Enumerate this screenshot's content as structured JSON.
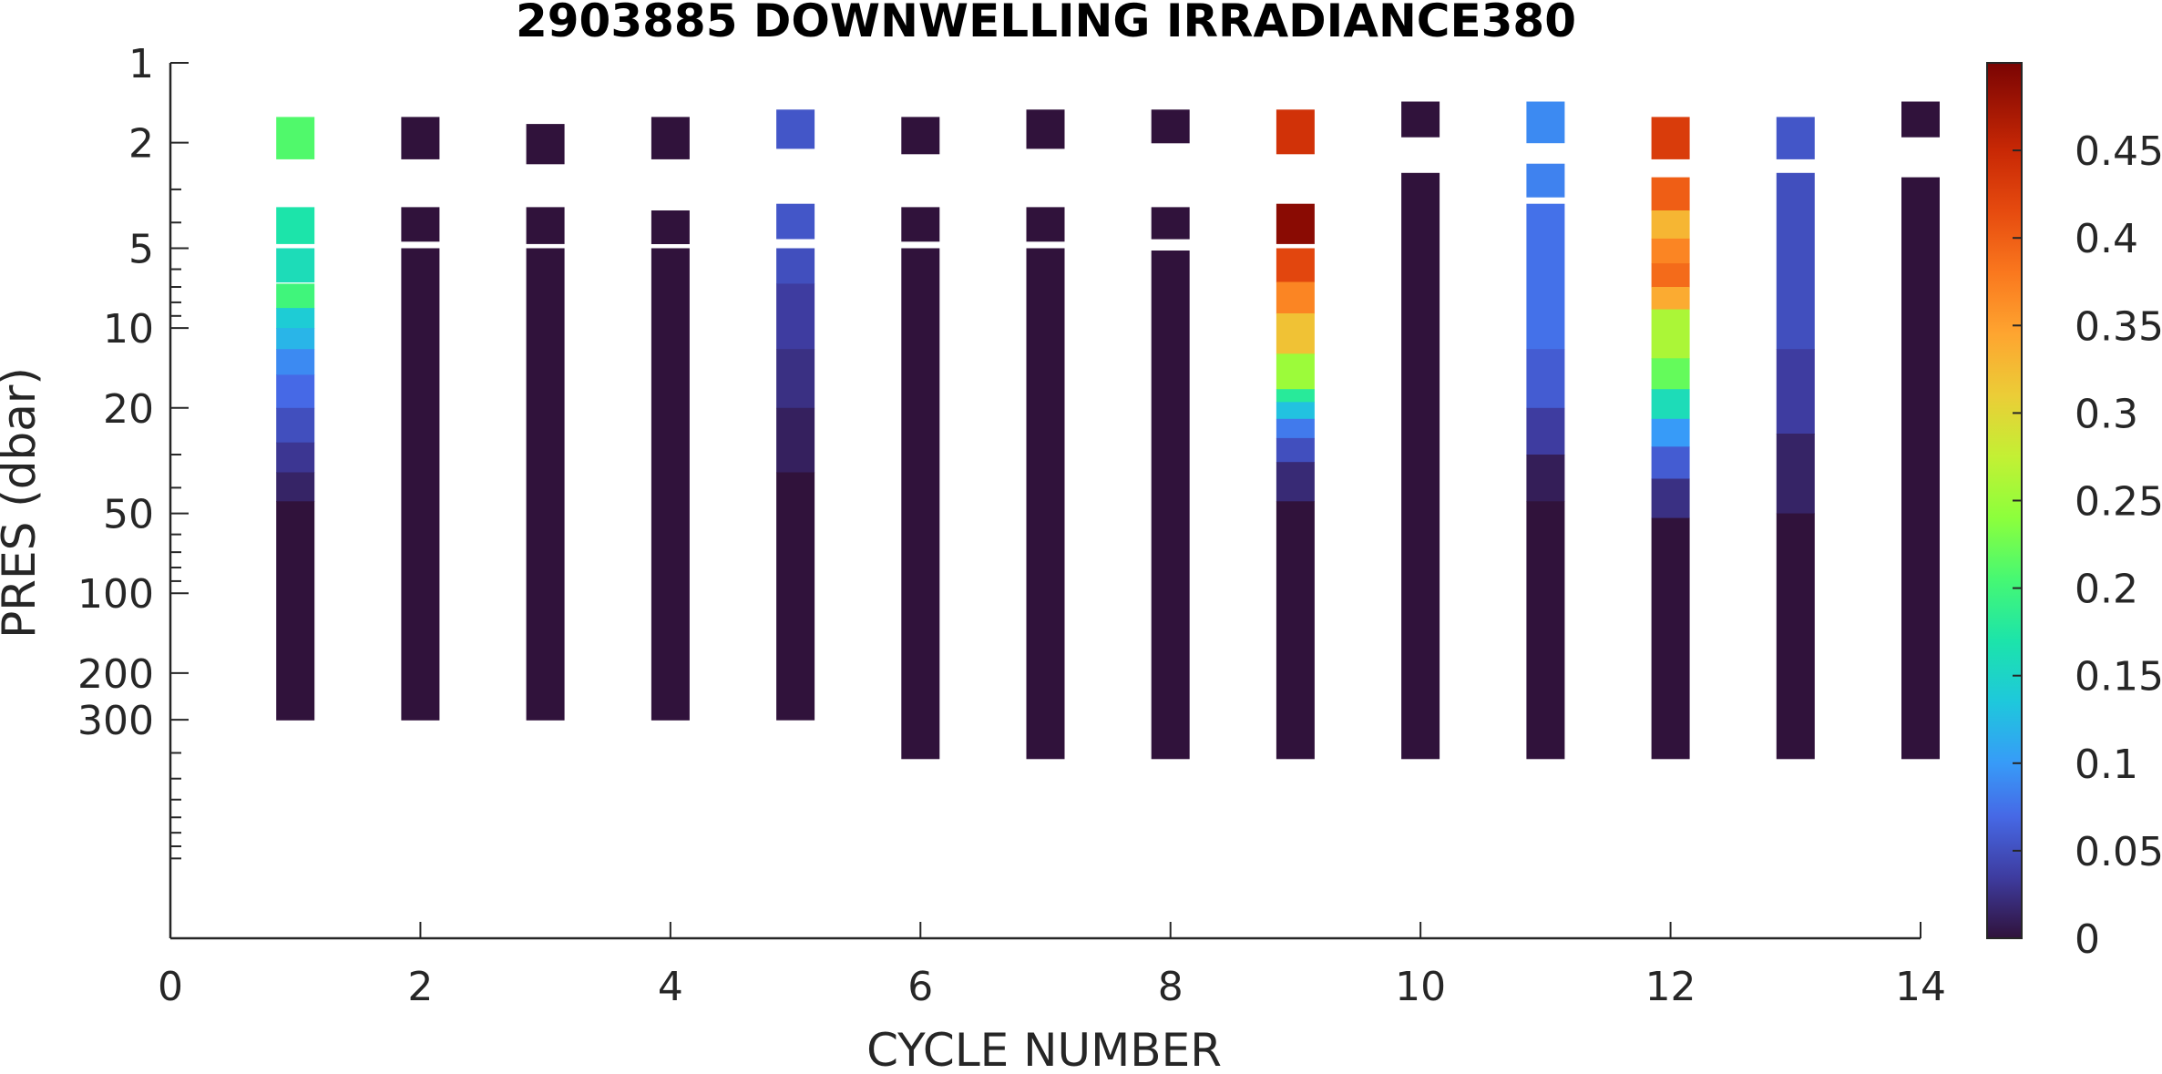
{
  "chart_data": {
    "type": "heatmap",
    "title": "2903885  DOWNWELLING IRRADIANCE380",
    "xlabel": "CYCLE NUMBER",
    "ylabel": "PRES (dbar)",
    "xlim": [
      0,
      14
    ],
    "ylim": [
      1,
      2000
    ],
    "y_scale": "log",
    "y_reversed": true,
    "x_ticks": [
      0,
      2,
      4,
      6,
      8,
      10,
      12,
      14
    ],
    "x_tick_labels": [
      "0",
      "2",
      "4",
      "6",
      "8",
      "10",
      "12",
      "14"
    ],
    "y_ticks": [
      1,
      2,
      5,
      10,
      20,
      50,
      100,
      200,
      300
    ],
    "y_tick_labels": [
      "1",
      "2",
      "5",
      "10",
      "20",
      "50",
      "100",
      "200",
      "300"
    ],
    "colorbar": {
      "colormap": "turbo",
      "range": [
        0,
        0.5
      ],
      "ticks": [
        0,
        0.05,
        0.1,
        0.15,
        0.2,
        0.25,
        0.3,
        0.35,
        0.4,
        0.45
      ],
      "tick_labels": [
        "0",
        "0.05",
        "0.1",
        "0.15",
        "0.2",
        "0.25",
        "0.3",
        "0.35",
        "0.4",
        "0.45"
      ]
    },
    "grid": false,
    "profiles": [
      {
        "cycle": 1,
        "segments": [
          {
            "p_top": 1.6,
            "p_bot": 2.3,
            "value": 0.21
          },
          {
            "p_top": 3.5,
            "p_bot": 4.8,
            "value": 0.17
          },
          {
            "p_top": 5.0,
            "p_bot": 6.7,
            "value": 0.16
          },
          {
            "p_top": 6.8,
            "p_bot": 8.4,
            "value": 0.2
          },
          {
            "p_top": 8.4,
            "p_bot": 10.0,
            "value": 0.14
          },
          {
            "p_top": 10.0,
            "p_bot": 12.0,
            "value": 0.12
          },
          {
            "p_top": 12.0,
            "p_bot": 15.0,
            "value": 0.09
          },
          {
            "p_top": 15.0,
            "p_bot": 20.0,
            "value": 0.07
          },
          {
            "p_top": 20.0,
            "p_bot": 27.0,
            "value": 0.05
          },
          {
            "p_top": 27.0,
            "p_bot": 35.0,
            "value": 0.03
          },
          {
            "p_top": 35.0,
            "p_bot": 45.0,
            "value": 0.015
          },
          {
            "p_top": 45.0,
            "p_bot": 300.0,
            "value": 0.0
          }
        ]
      },
      {
        "cycle": 2,
        "segments": [
          {
            "p_top": 1.6,
            "p_bot": 2.3,
            "value": 0.0
          },
          {
            "p_top": 3.5,
            "p_bot": 4.7,
            "value": 0.0
          },
          {
            "p_top": 5.0,
            "p_bot": 300.0,
            "value": 0.0
          }
        ]
      },
      {
        "cycle": 3,
        "segments": [
          {
            "p_top": 1.7,
            "p_bot": 2.4,
            "value": 0.0
          },
          {
            "p_top": 3.5,
            "p_bot": 4.8,
            "value": 0.0
          },
          {
            "p_top": 5.0,
            "p_bot": 300.0,
            "value": 0.0
          }
        ]
      },
      {
        "cycle": 4,
        "segments": [
          {
            "p_top": 1.6,
            "p_bot": 2.3,
            "value": 0.0
          },
          {
            "p_top": 3.6,
            "p_bot": 4.8,
            "value": 0.0
          },
          {
            "p_top": 5.0,
            "p_bot": 300.0,
            "value": 0.0
          }
        ]
      },
      {
        "cycle": 5,
        "segments": [
          {
            "p_top": 1.5,
            "p_bot": 2.1,
            "value": 0.055
          },
          {
            "p_top": 3.4,
            "p_bot": 4.6,
            "value": 0.055
          },
          {
            "p_top": 5.0,
            "p_bot": 6.8,
            "value": 0.05
          },
          {
            "p_top": 6.8,
            "p_bot": 12.0,
            "value": 0.035
          },
          {
            "p_top": 12.0,
            "p_bot": 20.0,
            "value": 0.025
          },
          {
            "p_top": 20.0,
            "p_bot": 35.0,
            "value": 0.012
          },
          {
            "p_top": 35.0,
            "p_bot": 300.0,
            "value": 0.0
          }
        ]
      },
      {
        "cycle": 6,
        "segments": [
          {
            "p_top": 1.6,
            "p_bot": 2.2,
            "value": 0.0
          },
          {
            "p_top": 3.5,
            "p_bot": 4.7,
            "value": 0.0
          },
          {
            "p_top": 5.0,
            "p_bot": 420.0,
            "value": 0.0
          }
        ]
      },
      {
        "cycle": 7,
        "segments": [
          {
            "p_top": 1.5,
            "p_bot": 2.1,
            "value": 0.0
          },
          {
            "p_top": 3.5,
            "p_bot": 4.7,
            "value": 0.0
          },
          {
            "p_top": 5.0,
            "p_bot": 420.0,
            "value": 0.0
          }
        ]
      },
      {
        "cycle": 8,
        "segments": [
          {
            "p_top": 1.5,
            "p_bot": 2.0,
            "value": 0.0
          },
          {
            "p_top": 3.5,
            "p_bot": 4.6,
            "value": 0.0
          },
          {
            "p_top": 5.1,
            "p_bot": 420.0,
            "value": 0.0
          }
        ]
      },
      {
        "cycle": 9,
        "segments": [
          {
            "p_top": 1.5,
            "p_bot": 2.2,
            "value": 0.44
          },
          {
            "p_top": 3.4,
            "p_bot": 4.8,
            "value": 0.49
          },
          {
            "p_top": 5.0,
            "p_bot": 6.7,
            "value": 0.42
          },
          {
            "p_top": 6.7,
            "p_bot": 8.8,
            "value": 0.37
          },
          {
            "p_top": 8.8,
            "p_bot": 12.5,
            "value": 0.32
          },
          {
            "p_top": 12.5,
            "p_bot": 17.0,
            "value": 0.25
          },
          {
            "p_top": 17.0,
            "p_bot": 19.0,
            "value": 0.18
          },
          {
            "p_top": 19.0,
            "p_bot": 22.0,
            "value": 0.13
          },
          {
            "p_top": 22.0,
            "p_bot": 26.0,
            "value": 0.08
          },
          {
            "p_top": 26.0,
            "p_bot": 32.0,
            "value": 0.05
          },
          {
            "p_top": 32.0,
            "p_bot": 45.0,
            "value": 0.02
          },
          {
            "p_top": 45.0,
            "p_bot": 420.0,
            "value": 0.0
          }
        ]
      },
      {
        "cycle": 10,
        "segments": [
          {
            "p_top": 1.4,
            "p_bot": 1.9,
            "value": 0.0
          },
          {
            "p_top": 2.6,
            "p_bot": 420.0,
            "value": 0.0
          }
        ]
      },
      {
        "cycle": 11,
        "segments": [
          {
            "p_top": 1.4,
            "p_bot": 2.0,
            "value": 0.09
          },
          {
            "p_top": 2.4,
            "p_bot": 3.2,
            "value": 0.085
          },
          {
            "p_top": 3.4,
            "p_bot": 12.0,
            "value": 0.075
          },
          {
            "p_top": 12.0,
            "p_bot": 20.0,
            "value": 0.06
          },
          {
            "p_top": 20.0,
            "p_bot": 30.0,
            "value": 0.035
          },
          {
            "p_top": 30.0,
            "p_bot": 45.0,
            "value": 0.01
          },
          {
            "p_top": 45.0,
            "p_bot": 420.0,
            "value": 0.0
          }
        ]
      },
      {
        "cycle": 12,
        "segments": [
          {
            "p_top": 1.6,
            "p_bot": 2.3,
            "value": 0.43
          },
          {
            "p_top": 2.7,
            "p_bot": 3.6,
            "value": 0.4
          },
          {
            "p_top": 3.6,
            "p_bot": 4.6,
            "value": 0.33
          },
          {
            "p_top": 4.6,
            "p_bot": 5.7,
            "value": 0.37
          },
          {
            "p_top": 5.7,
            "p_bot": 7.0,
            "value": 0.39
          },
          {
            "p_top": 7.0,
            "p_bot": 8.5,
            "value": 0.34
          },
          {
            "p_top": 8.5,
            "p_bot": 13.0,
            "value": 0.26
          },
          {
            "p_top": 13.0,
            "p_bot": 17.0,
            "value": 0.22
          },
          {
            "p_top": 17.0,
            "p_bot": 22.0,
            "value": 0.16
          },
          {
            "p_top": 22.0,
            "p_bot": 28.0,
            "value": 0.1
          },
          {
            "p_top": 28.0,
            "p_bot": 37.0,
            "value": 0.06
          },
          {
            "p_top": 37.0,
            "p_bot": 52.0,
            "value": 0.025
          },
          {
            "p_top": 52.0,
            "p_bot": 420.0,
            "value": 0.0
          }
        ]
      },
      {
        "cycle": 13,
        "segments": [
          {
            "p_top": 1.6,
            "p_bot": 2.3,
            "value": 0.055
          },
          {
            "p_top": 2.6,
            "p_bot": 12.0,
            "value": 0.05
          },
          {
            "p_top": 12.0,
            "p_bot": 25.0,
            "value": 0.035
          },
          {
            "p_top": 25.0,
            "p_bot": 50.0,
            "value": 0.015
          },
          {
            "p_top": 50.0,
            "p_bot": 420.0,
            "value": 0.0
          }
        ]
      },
      {
        "cycle": 14,
        "segments": [
          {
            "p_top": 1.4,
            "p_bot": 1.9,
            "value": 0.0
          },
          {
            "p_top": 2.7,
            "p_bot": 420.0,
            "value": 0.0
          }
        ]
      }
    ]
  }
}
